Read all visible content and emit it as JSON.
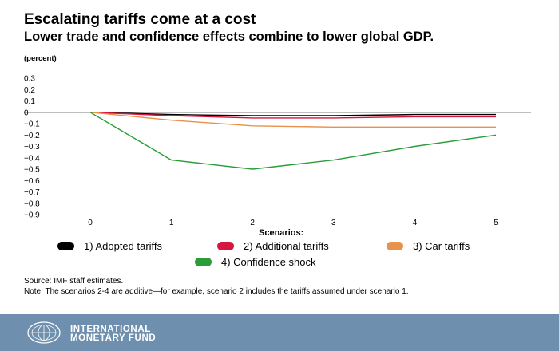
{
  "title": "Escalating tariffs come at a cost",
  "subtitle": "Lower trade and confidence effects combine to lower global GDP.",
  "unit_label": "(percent)",
  "chart_data": {
    "type": "line",
    "x": [
      0,
      1,
      2,
      3,
      4,
      5
    ],
    "xlabel": "",
    "ylabel": "",
    "ylim": [
      -0.9,
      0.3
    ],
    "yticks": [
      0.3,
      0.2,
      0.1,
      0,
      -0.1,
      -0.2,
      -0.3,
      -0.4,
      -0.5,
      -0.6,
      -0.7,
      -0.8,
      -0.9
    ],
    "ytick_labels": [
      "0.3",
      "0.2",
      "0.1",
      "0",
      "−0.1",
      "−0.2",
      "−0.3",
      "−0.4",
      "−0.5",
      "−0.6",
      "−0.7",
      "−0.8",
      "−0.9"
    ],
    "xtick_labels": [
      "0",
      "1",
      "2",
      "3",
      "4",
      "5"
    ],
    "grid": false,
    "legend_title": "Scenarios:",
    "legend_position": "bottom",
    "series": [
      {
        "name": "1) Adopted tariffs",
        "color": "#000000",
        "values": [
          0,
          -0.02,
          -0.03,
          -0.03,
          -0.02,
          -0.02
        ]
      },
      {
        "name": "2) Additional tariffs",
        "color": "#d6163f",
        "values": [
          0,
          -0.03,
          -0.05,
          -0.05,
          -0.04,
          -0.04
        ]
      },
      {
        "name": "3) Car tariffs",
        "color": "#e8914a",
        "values": [
          0,
          -0.07,
          -0.12,
          -0.13,
          -0.13,
          -0.13
        ]
      },
      {
        "name": "4) Confidence shock",
        "color": "#2a9d3a",
        "values": [
          0,
          -0.42,
          -0.5,
          -0.42,
          -0.3,
          -0.2
        ]
      }
    ]
  },
  "notes": {
    "source": "Source: IMF staff estimates.",
    "note": "Note: The scenarios 2-4 are additive—for example, scenario 2 includes the tariffs assumed under scenario 1."
  },
  "footer": {
    "org_line1": "INTERNATIONAL",
    "org_line2": "MONETARY FUND",
    "logo_icon": "imf-seal-icon",
    "background": "#6e8fad"
  }
}
